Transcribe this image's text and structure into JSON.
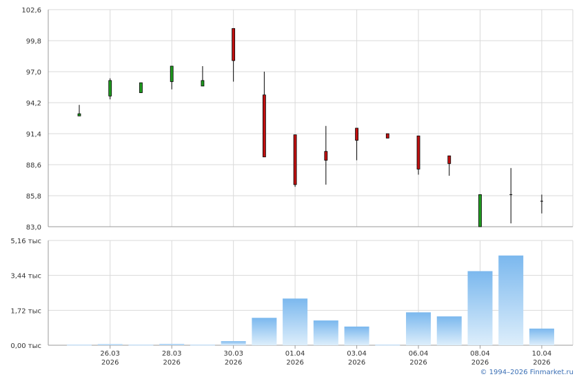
{
  "chart_data": [
    {
      "type": "candlestick",
      "ylim": [
        83.0,
        102.6
      ],
      "yticks": [
        "102,6",
        "99,8",
        "97,0",
        "94,2",
        "91,4",
        "88,6",
        "85,8",
        "83,0"
      ],
      "grid": true,
      "candles": [
        {
          "open": 93.0,
          "close": 93.2,
          "high": 94.0,
          "low": 93.0
        },
        {
          "open": 94.8,
          "close": 96.2,
          "high": 96.4,
          "low": 94.5
        },
        {
          "open": 95.1,
          "close": 96.0,
          "high": 96.0,
          "low": 95.1
        },
        {
          "open": 96.1,
          "close": 97.5,
          "high": 97.5,
          "low": 95.4
        },
        {
          "open": 95.7,
          "close": 96.2,
          "high": 97.5,
          "low": 95.7
        },
        {
          "open": 100.9,
          "close": 98.0,
          "high": 100.9,
          "low": 96.1
        },
        {
          "open": 94.9,
          "close": 89.3,
          "high": 97.0,
          "low": 89.3
        },
        {
          "open": 91.3,
          "close": 86.8,
          "high": 91.3,
          "low": 86.6
        },
        {
          "open": 89.8,
          "close": 89.0,
          "high": 92.1,
          "low": 86.8
        },
        {
          "open": 91.9,
          "close": 90.8,
          "high": 91.9,
          "low": 89.0
        },
        {
          "open": 91.4,
          "close": 91.0,
          "high": 91.4,
          "low": 91.0
        },
        {
          "open": 91.2,
          "close": 88.2,
          "high": 91.2,
          "low": 87.7
        },
        {
          "open": 89.4,
          "close": 88.7,
          "high": 89.4,
          "low": 87.6
        },
        {
          "open": 83.0,
          "close": 85.9,
          "high": 85.9,
          "low": 83.0
        },
        {
          "open": 85.9,
          "close": 85.9,
          "high": 88.3,
          "low": 83.3
        },
        {
          "open": 85.3,
          "close": 85.3,
          "high": 85.9,
          "low": 84.2
        }
      ]
    },
    {
      "type": "bar",
      "ylim": [
        0,
        5.16
      ],
      "yticks": [
        "5,16 тыс",
        "3,44 тыс",
        "1,72 тыс",
        "0,00 тыс"
      ],
      "values": [
        0.02,
        0.05,
        0.02,
        0.06,
        0.02,
        0.2,
        1.35,
        2.3,
        1.22,
        0.92,
        0.02,
        1.62,
        1.42,
        3.65,
        4.42,
        0.82
      ],
      "grid": true
    }
  ],
  "x_axis": {
    "labels": [
      {
        "index": 1,
        "date": "26.03",
        "year": "2026"
      },
      {
        "index": 3,
        "date": "28.03",
        "year": "2026"
      },
      {
        "index": 5,
        "date": "30.03",
        "year": "2026"
      },
      {
        "index": 7,
        "date": "01.04",
        "year": "2026"
      },
      {
        "index": 9,
        "date": "03.04",
        "year": "2026"
      },
      {
        "index": 11,
        "date": "06.04",
        "year": "2026"
      },
      {
        "index": 13,
        "date": "08.04",
        "year": "2026"
      },
      {
        "index": 15,
        "date": "10.04",
        "year": "2026"
      }
    ]
  },
  "copyright": "© 1994–2026 Finmarket.ru",
  "colors": {
    "up": "#1f9a1f",
    "down": "#c01010",
    "bar_top": "#7bb8ee",
    "bar_bottom": "#ddeefb",
    "grid": "#d9d9d9",
    "axis": "#999999"
  }
}
